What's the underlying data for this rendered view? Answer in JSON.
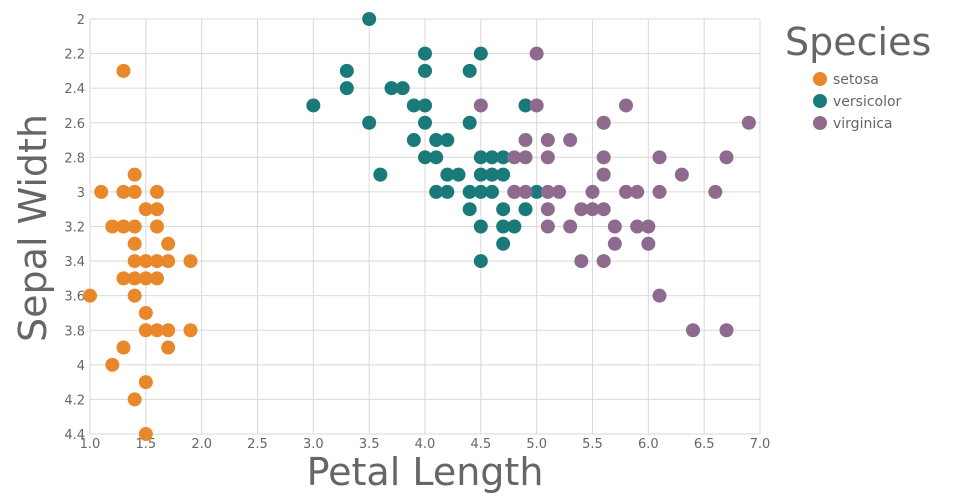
{
  "chart_data": {
    "type": "scatter",
    "title": "",
    "xlabel": "Petal Length",
    "ylabel": "Sepal Width",
    "xlim": [
      1.0,
      7.0
    ],
    "ylim": [
      2.0,
      4.4
    ],
    "y_reversed": true,
    "x_ticks": [
      "1.0",
      "1.5",
      "2.0",
      "2.5",
      "3.0",
      "3.5",
      "4.0",
      "4.5",
      "5.0",
      "5.5",
      "6.0",
      "6.5",
      "7.0"
    ],
    "y_ticks": [
      "2",
      "2.2",
      "2.4",
      "2.6",
      "2.8",
      "3",
      "3.2",
      "3.4",
      "3.6",
      "3.8",
      "4",
      "4.2",
      "4.4"
    ],
    "grid": true,
    "legend": {
      "title": "Species",
      "position": "top-right"
    },
    "series": [
      {
        "name": "setosa",
        "color": "#e8882a",
        "points": [
          [
            1.3,
            2.3
          ],
          [
            1.4,
            2.9
          ],
          [
            1.1,
            3.0
          ],
          [
            1.3,
            3.0
          ],
          [
            1.4,
            3.0
          ],
          [
            1.6,
            3.0
          ],
          [
            1.5,
            3.1
          ],
          [
            1.6,
            3.1
          ],
          [
            1.2,
            3.2
          ],
          [
            1.3,
            3.2
          ],
          [
            1.4,
            3.2
          ],
          [
            1.6,
            3.2
          ],
          [
            1.4,
            3.3
          ],
          [
            1.7,
            3.3
          ],
          [
            1.4,
            3.4
          ],
          [
            1.5,
            3.4
          ],
          [
            1.6,
            3.4
          ],
          [
            1.7,
            3.4
          ],
          [
            1.9,
            3.4
          ],
          [
            1.3,
            3.5
          ],
          [
            1.4,
            3.5
          ],
          [
            1.5,
            3.5
          ],
          [
            1.6,
            3.5
          ],
          [
            1.0,
            3.6
          ],
          [
            1.4,
            3.6
          ],
          [
            1.5,
            3.7
          ],
          [
            1.5,
            3.8
          ],
          [
            1.6,
            3.8
          ],
          [
            1.7,
            3.8
          ],
          [
            1.9,
            3.8
          ],
          [
            1.3,
            3.9
          ],
          [
            1.7,
            3.9
          ],
          [
            1.2,
            4.0
          ],
          [
            1.5,
            4.1
          ],
          [
            1.4,
            4.2
          ],
          [
            1.5,
            4.4
          ]
        ]
      },
      {
        "name": "versicolor",
        "color": "#1a7a7a",
        "points": [
          [
            3.5,
            2.0
          ],
          [
            4.0,
            2.2
          ],
          [
            4.5,
            2.2
          ],
          [
            3.3,
            2.3
          ],
          [
            4.0,
            2.3
          ],
          [
            4.4,
            2.3
          ],
          [
            3.3,
            2.4
          ],
          [
            3.7,
            2.4
          ],
          [
            3.8,
            2.4
          ],
          [
            3.0,
            2.5
          ],
          [
            3.9,
            2.5
          ],
          [
            4.0,
            2.5
          ],
          [
            4.9,
            2.5
          ],
          [
            3.5,
            2.6
          ],
          [
            4.0,
            2.6
          ],
          [
            4.4,
            2.6
          ],
          [
            3.9,
            2.7
          ],
          [
            4.1,
            2.7
          ],
          [
            4.2,
            2.7
          ],
          [
            4.0,
            2.8
          ],
          [
            4.1,
            2.8
          ],
          [
            4.5,
            2.8
          ],
          [
            4.6,
            2.8
          ],
          [
            4.7,
            2.8
          ],
          [
            3.6,
            2.9
          ],
          [
            4.2,
            2.9
          ],
          [
            4.3,
            2.9
          ],
          [
            4.5,
            2.9
          ],
          [
            4.6,
            2.9
          ],
          [
            4.7,
            2.9
          ],
          [
            4.1,
            3.0
          ],
          [
            4.2,
            3.0
          ],
          [
            4.4,
            3.0
          ],
          [
            4.5,
            3.0
          ],
          [
            4.6,
            3.0
          ],
          [
            4.8,
            3.0
          ],
          [
            5.0,
            3.0
          ],
          [
            4.4,
            3.1
          ],
          [
            4.7,
            3.1
          ],
          [
            4.9,
            3.1
          ],
          [
            4.5,
            3.2
          ],
          [
            4.7,
            3.2
          ],
          [
            4.8,
            3.2
          ],
          [
            4.7,
            3.3
          ],
          [
            4.5,
            3.4
          ]
        ]
      },
      {
        "name": "virginica",
        "color": "#8e6b8e",
        "points": [
          [
            5.0,
            2.2
          ],
          [
            4.5,
            2.5
          ],
          [
            5.0,
            2.5
          ],
          [
            5.8,
            2.5
          ],
          [
            5.6,
            2.6
          ],
          [
            6.9,
            2.6
          ],
          [
            4.9,
            2.7
          ],
          [
            5.1,
            2.7
          ],
          [
            5.3,
            2.7
          ],
          [
            4.8,
            2.8
          ],
          [
            4.9,
            2.8
          ],
          [
            5.1,
            2.8
          ],
          [
            5.6,
            2.8
          ],
          [
            6.1,
            2.8
          ],
          [
            6.7,
            2.8
          ],
          [
            5.6,
            2.9
          ],
          [
            6.3,
            2.9
          ],
          [
            4.8,
            3.0
          ],
          [
            4.9,
            3.0
          ],
          [
            5.1,
            3.0
          ],
          [
            5.2,
            3.0
          ],
          [
            5.5,
            3.0
          ],
          [
            5.8,
            3.0
          ],
          [
            5.9,
            3.0
          ],
          [
            6.1,
            3.0
          ],
          [
            6.6,
            3.0
          ],
          [
            5.1,
            3.1
          ],
          [
            5.4,
            3.1
          ],
          [
            5.5,
            3.1
          ],
          [
            5.6,
            3.1
          ],
          [
            5.1,
            3.2
          ],
          [
            5.3,
            3.2
          ],
          [
            5.7,
            3.2
          ],
          [
            5.9,
            3.2
          ],
          [
            6.0,
            3.2
          ],
          [
            5.7,
            3.3
          ],
          [
            6.0,
            3.3
          ],
          [
            5.4,
            3.4
          ],
          [
            5.6,
            3.4
          ],
          [
            6.1,
            3.6
          ],
          [
            6.4,
            3.8
          ],
          [
            6.7,
            3.8
          ]
        ]
      }
    ]
  }
}
